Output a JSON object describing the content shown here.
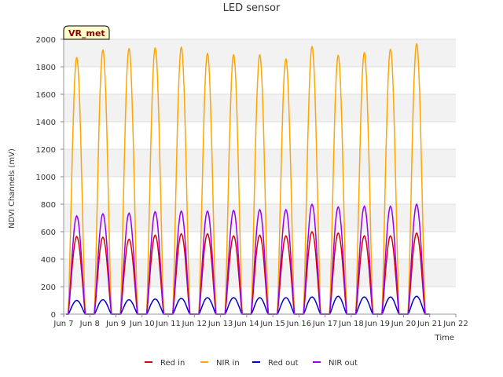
{
  "chart_data": {
    "type": "line",
    "title": "LED sensor",
    "xlabel": "Time",
    "ylabel": "NDVI Channels (mV)",
    "badge": "VR_met",
    "ylim": [
      0,
      2000
    ],
    "yticks": [
      0,
      200,
      400,
      600,
      800,
      1000,
      1200,
      1400,
      1600,
      1800,
      2000
    ],
    "xlim": [
      7,
      22
    ],
    "xticks": [
      {
        "v": 7,
        "label": "Jun 7"
      },
      {
        "v": 8,
        "label": "Jun 8"
      },
      {
        "v": 9,
        "label": "Jun 9"
      },
      {
        "v": 10,
        "label": "Jun 10"
      },
      {
        "v": 11,
        "label": "Jun 11"
      },
      {
        "v": 12,
        "label": "Jun 12"
      },
      {
        "v": 13,
        "label": "Jun 13"
      },
      {
        "v": 14,
        "label": "Jun 14"
      },
      {
        "v": 15,
        "label": "Jun 15"
      },
      {
        "v": 16,
        "label": "Jun 16"
      },
      {
        "v": 17,
        "label": "Jun 17"
      },
      {
        "v": 18,
        "label": "Jun 18"
      },
      {
        "v": 19,
        "label": "Jun 19"
      },
      {
        "v": 20,
        "label": "Jun 20"
      },
      {
        "v": 21,
        "label": "Jun 21"
      },
      {
        "v": 22,
        "label": "Jun 22"
      }
    ],
    "day_centers": [
      7.5,
      8.5,
      9.5,
      10.5,
      11.5,
      12.5,
      13.5,
      14.5,
      15.5,
      16.5,
      17.5,
      18.5,
      19.5,
      20.5
    ],
    "day_halfwidth": 0.33,
    "legend_position": "bottom",
    "series": [
      {
        "name": "Red in",
        "color": "#dd0000",
        "peaks": [
          565,
          560,
          545,
          575,
          585,
          585,
          570,
          575,
          570,
          600,
          590,
          570,
          570,
          590
        ]
      },
      {
        "name": "NIR in",
        "color": "#ffa500",
        "peaks": [
          1870,
          1925,
          1935,
          1940,
          1945,
          1900,
          1890,
          1890,
          1860,
          1950,
          1885,
          1905,
          1930,
          1970
        ]
      },
      {
        "name": "Red out",
        "color": "#0000cc",
        "peaks": [
          100,
          105,
          105,
          110,
          115,
          120,
          120,
          120,
          120,
          125,
          130,
          125,
          125,
          130
        ]
      },
      {
        "name": "NIR out",
        "color": "#9900ee",
        "peaks": [
          715,
          730,
          735,
          745,
          750,
          750,
          755,
          760,
          760,
          800,
          780,
          785,
          785,
          800
        ]
      }
    ]
  }
}
